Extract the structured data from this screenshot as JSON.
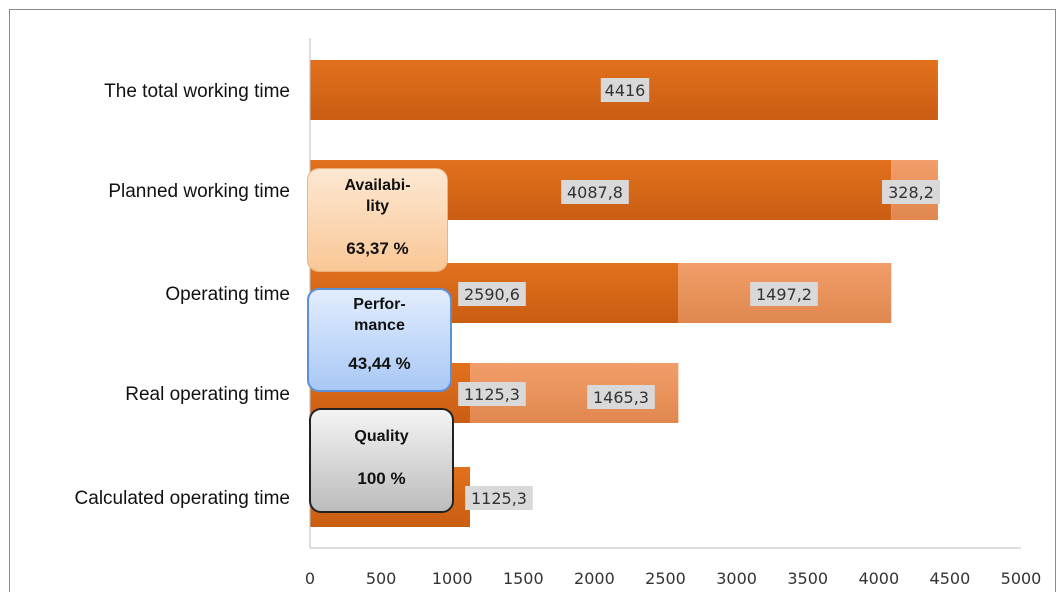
{
  "chart_data": {
    "type": "bar",
    "orientation": "horizontal",
    "stacked": true,
    "categories": [
      "The total working time",
      "Planned working time",
      "Operating time",
      "Real operating time",
      "Calculated operating time"
    ],
    "series": [
      {
        "values": [
          4416,
          4087.8,
          2590.6,
          1125.3,
          1125.3
        ],
        "labels": [
          "4416",
          "4087,8",
          "2590,6",
          "1125,3",
          "1125,3"
        ],
        "color": "#e2711d"
      },
      {
        "values": [
          0,
          328.2,
          1497.2,
          1465.3,
          0
        ],
        "labels": [
          "",
          "328,2",
          "1497,2",
          "1465,3",
          ""
        ],
        "color": "#f29e6a"
      }
    ],
    "xlim": [
      0,
      5000
    ],
    "xticks": [
      "0",
      "500",
      "1000",
      "1500",
      "2000",
      "2500",
      "3000",
      "3500",
      "4000",
      "4500",
      "5000"
    ],
    "grid": false,
    "legend": "none"
  },
  "kpis": {
    "availability": {
      "title": "Availabi-­lity",
      "title_lines": [
        "Availabi-",
        "lity"
      ],
      "value": "63,37 %"
    },
    "performance": {
      "title_lines": [
        "Perfor-",
        "mance"
      ],
      "value": "43,44 %"
    },
    "quality": {
      "title": "Quality",
      "value": "100 %"
    }
  }
}
